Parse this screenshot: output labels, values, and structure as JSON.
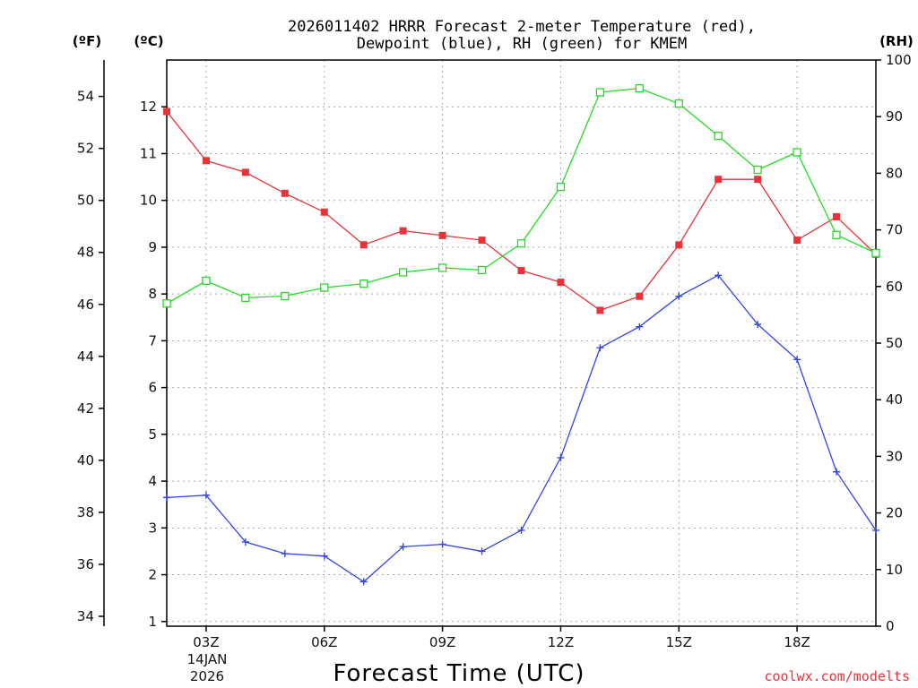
{
  "chart_data": {
    "type": "line",
    "title_line1": "2026011402 HRRR Forecast 2-meter Temperature (red),",
    "title_line2": "Dewpoint (blue), RH (green) for KMEM",
    "xlabel": "Forecast Time (UTC)",
    "credit": "coolwx.com/modelts",
    "units": {
      "fahrenheit": "(ºF)",
      "celsius": "(ºC)",
      "rh": "(RH)"
    },
    "x_hours": [
      2,
      3,
      4,
      5,
      6,
      7,
      8,
      9,
      10,
      11,
      12,
      13,
      14,
      15,
      16,
      17,
      18,
      19,
      20
    ],
    "x_ticks": [
      {
        "hour": 3,
        "label": "03Z"
      },
      {
        "hour": 6,
        "label": "06Z"
      },
      {
        "hour": 9,
        "label": "09Z"
      },
      {
        "hour": 12,
        "label": "12Z"
      },
      {
        "hour": 15,
        "label": "15Z"
      },
      {
        "hour": 18,
        "label": "18Z"
      }
    ],
    "date_label": [
      "14JAN",
      "2026"
    ],
    "xlim": [
      2,
      20
    ],
    "ylim_c": [
      0.9,
      13.0
    ],
    "ylim_rh": [
      0,
      100
    ],
    "y_ticks_c": [
      "1",
      "2",
      "3",
      "4",
      "5",
      "6",
      "7",
      "8",
      "9",
      "10",
      "11",
      "12"
    ],
    "y_ticks_f": [
      "34",
      "36",
      "38",
      "40",
      "42",
      "44",
      "46",
      "48",
      "50",
      "52",
      "54"
    ],
    "y_ticks_rh": [
      "0",
      "10",
      "20",
      "30",
      "40",
      "50",
      "60",
      "70",
      "80",
      "90",
      "100"
    ],
    "series": [
      {
        "name": "Temperature",
        "color": "#e8333b",
        "marker": "filled-square",
        "units": "C",
        "values": [
          11.9,
          10.85,
          10.6,
          10.15,
          9.75,
          9.05,
          9.35,
          9.25,
          9.15,
          8.5,
          8.25,
          7.65,
          7.95,
          9.05,
          10.45,
          10.45,
          9.15,
          9.65,
          8.85
        ]
      },
      {
        "name": "Dewpoint",
        "color": "#3344e8",
        "marker": "plus",
        "units": "C",
        "values": [
          3.65,
          3.7,
          2.7,
          2.45,
          2.4,
          1.85,
          2.6,
          2.65,
          2.5,
          2.95,
          4.5,
          6.85,
          7.3,
          7.95,
          8.4,
          7.35,
          6.6,
          4.2,
          2.95
        ]
      },
      {
        "name": "RH",
        "color": "#22dd22",
        "marker": "open-square",
        "units": "%",
        "values": [
          57,
          61,
          58,
          58.3,
          59.8,
          60.5,
          62.5,
          63.3,
          62.9,
          67.6,
          77.6,
          94.3,
          95,
          92.3,
          86.6,
          80.6,
          83.7,
          69.1,
          65.9
        ]
      }
    ]
  }
}
